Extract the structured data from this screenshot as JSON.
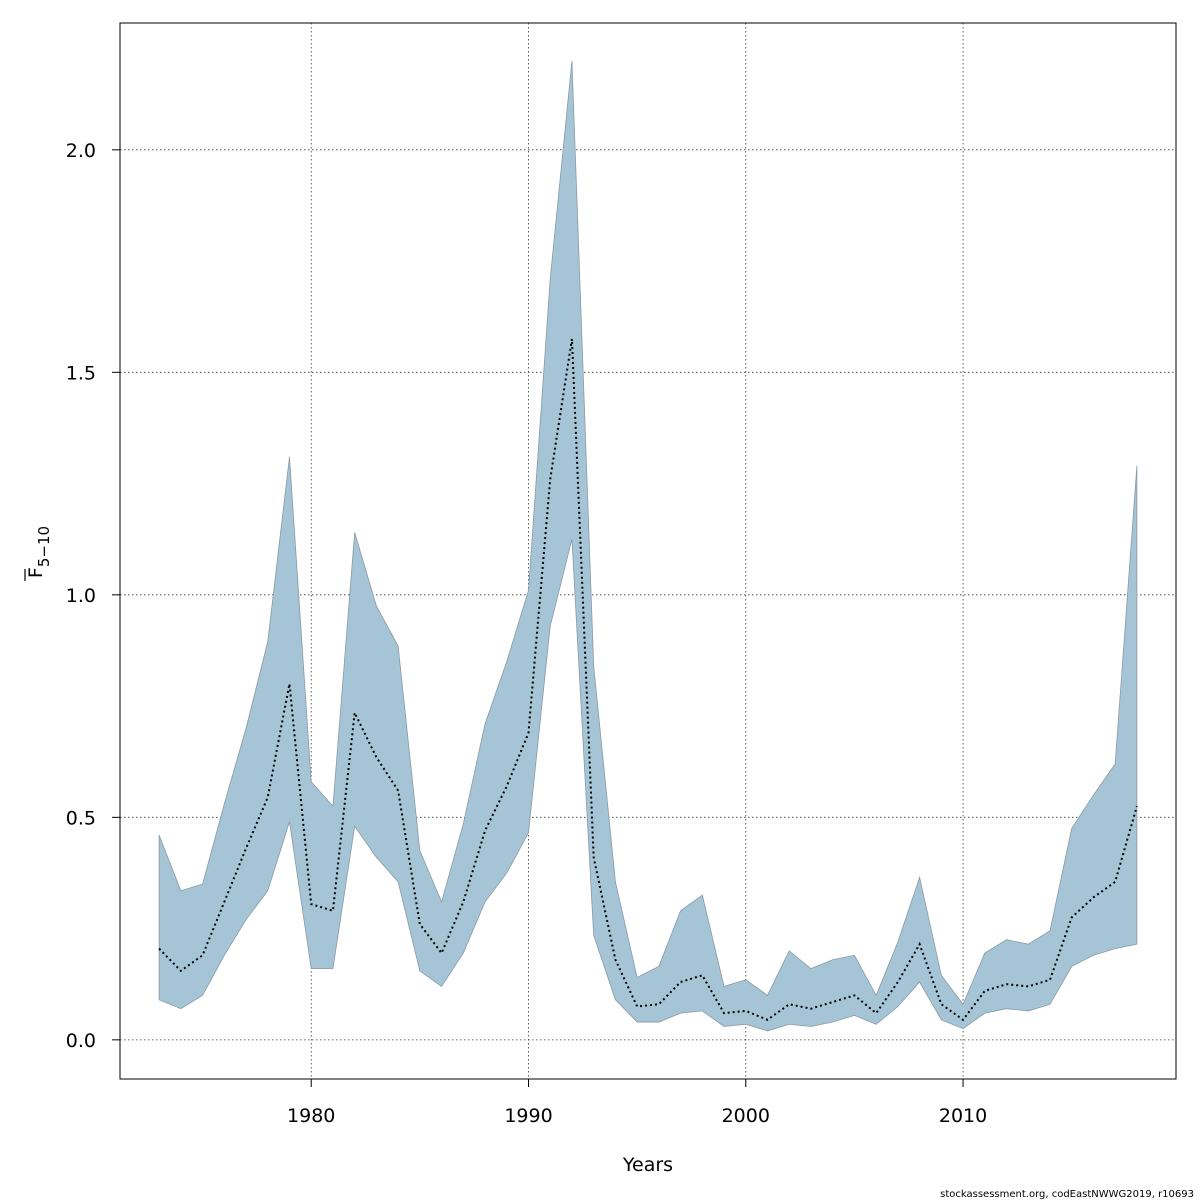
{
  "chart_data": {
    "type": "area",
    "title": "",
    "xlabel": "Years",
    "ylabel_main": "F",
    "ylabel_sub": "5−10",
    "xlim": [
      1971.2,
      2019.8
    ],
    "ylim": [
      -0.088,
      2.285
    ],
    "x_ticks": [
      1980,
      1990,
      2000,
      2010
    ],
    "y_ticks": [
      0.0,
      0.5,
      1.0,
      1.5,
      2.0
    ],
    "y_tick_labels": [
      "0.0",
      "0.5",
      "1.0",
      "1.5",
      "2.0"
    ],
    "grid": true,
    "colors": {
      "band_fill": "#a5c4d5",
      "band_stroke": "#8a9aa6",
      "line": "#000000"
    },
    "years": [
      1973,
      1974,
      1975,
      1976,
      1977,
      1978,
      1979,
      1980,
      1981,
      1982,
      1983,
      1984,
      1985,
      1986,
      1987,
      1988,
      1989,
      1990,
      1991,
      1992,
      1993,
      1994,
      1995,
      1996,
      1997,
      1998,
      1999,
      2000,
      2001,
      2002,
      2003,
      2004,
      2005,
      2006,
      2007,
      2008,
      2009,
      2010,
      2011,
      2012,
      2013,
      2014,
      2015,
      2016,
      2017,
      2018
    ],
    "series": [
      {
        "name": "estimate",
        "values": [
          0.205,
          0.155,
          0.19,
          0.31,
          0.43,
          0.545,
          0.8,
          0.305,
          0.29,
          0.735,
          0.635,
          0.56,
          0.26,
          0.195,
          0.31,
          0.47,
          0.57,
          0.69,
          1.26,
          1.575,
          0.41,
          0.18,
          0.075,
          0.08,
          0.13,
          0.145,
          0.06,
          0.065,
          0.045,
          0.08,
          0.07,
          0.085,
          0.1,
          0.06,
          0.13,
          0.215,
          0.08,
          0.045,
          0.11,
          0.125,
          0.12,
          0.135,
          0.275,
          0.32,
          0.355,
          0.525
        ]
      },
      {
        "name": "lower",
        "values": [
          0.09,
          0.07,
          0.1,
          0.19,
          0.27,
          0.335,
          0.49,
          0.16,
          0.16,
          0.48,
          0.41,
          0.355,
          0.155,
          0.12,
          0.195,
          0.31,
          0.375,
          0.465,
          0.93,
          1.125,
          0.235,
          0.09,
          0.04,
          0.04,
          0.06,
          0.065,
          0.03,
          0.035,
          0.02,
          0.035,
          0.03,
          0.04,
          0.055,
          0.035,
          0.075,
          0.13,
          0.045,
          0.025,
          0.06,
          0.07,
          0.065,
          0.08,
          0.165,
          0.19,
          0.205,
          0.215
        ]
      },
      {
        "name": "upper",
        "values": [
          0.46,
          0.335,
          0.35,
          0.53,
          0.7,
          0.895,
          1.31,
          0.58,
          0.525,
          1.14,
          0.975,
          0.885,
          0.425,
          0.31,
          0.485,
          0.71,
          0.85,
          1.01,
          1.71,
          2.2,
          0.84,
          0.355,
          0.14,
          0.165,
          0.29,
          0.325,
          0.12,
          0.135,
          0.1,
          0.2,
          0.16,
          0.18,
          0.19,
          0.1,
          0.22,
          0.365,
          0.145,
          0.08,
          0.195,
          0.225,
          0.215,
          0.245,
          0.475,
          0.55,
          0.62,
          1.29
        ]
      }
    ]
  },
  "footer": {
    "credit": "stockassessment.org, codEastNWWG2019, r10693"
  }
}
